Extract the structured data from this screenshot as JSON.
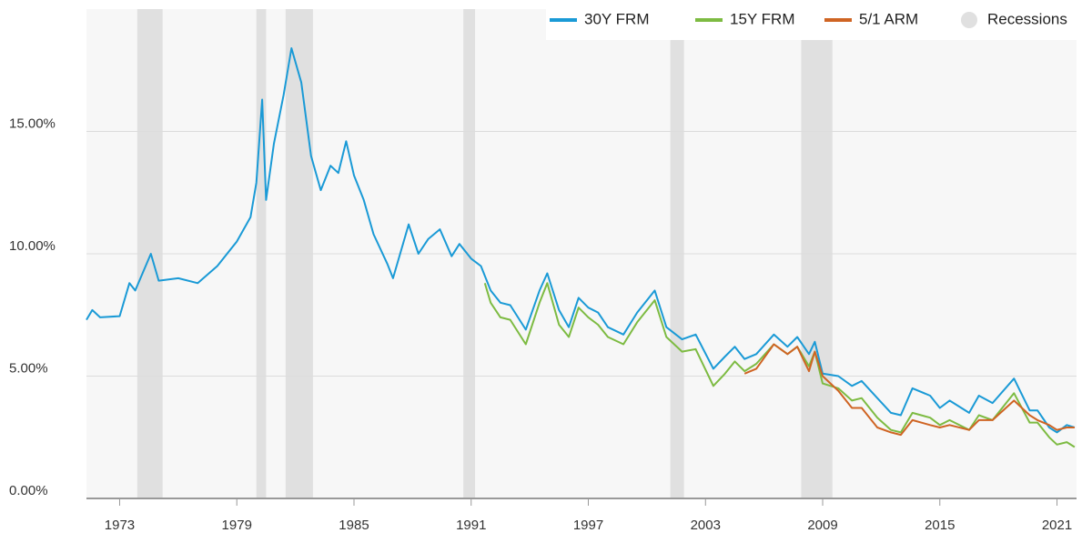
{
  "chart_data": {
    "type": "line",
    "xlim": [
      1971.3,
      2022.0
    ],
    "xticks": [
      1973,
      1979,
      1985,
      1991,
      1997,
      2003,
      2009,
      2015,
      2021
    ],
    "ylim": [
      0,
      20
    ],
    "yticks": [
      {
        "value": 0,
        "label": "0.00%"
      },
      {
        "value": 5,
        "label": "5.00%"
      },
      {
        "value": 10,
        "label": "10.00%"
      },
      {
        "value": 15,
        "label": "15.00%"
      }
    ],
    "grid": true,
    "legend": "top-right",
    "recession_label": "Recessions",
    "recession_color": "#e0e0e0",
    "recessions": [
      {
        "start": 1973.9,
        "end": 1975.2
      },
      {
        "start": 1980.0,
        "end": 1980.5
      },
      {
        "start": 1981.5,
        "end": 1982.9
      },
      {
        "start": 1990.6,
        "end": 1991.2
      },
      {
        "start": 2001.2,
        "end": 2001.9
      },
      {
        "start": 2007.9,
        "end": 2009.5
      }
    ],
    "series": [
      {
        "name": "30Y FRM",
        "color": "#1a9ad6",
        "x": [
          1971.3,
          1971.6,
          1972,
          1973,
          1973.5,
          1973.8,
          1974.6,
          1975,
          1976,
          1977,
          1978,
          1979,
          1979.7,
          1980.0,
          1980.3,
          1980.5,
          1980.9,
          1981.4,
          1981.8,
          1982.3,
          1982.8,
          1983.3,
          1983.8,
          1984.2,
          1984.6,
          1985.0,
          1985.5,
          1986.0,
          1986.7,
          1987.0,
          1987.8,
          1988.3,
          1988.8,
          1989.4,
          1990.0,
          1990.4,
          1991.0,
          1991.5,
          1992.0,
          1992.5,
          1993.0,
          1993.8,
          1994.5,
          1994.9,
          1995.5,
          1996.0,
          1996.5,
          1997.0,
          1997.5,
          1998.0,
          1998.8,
          1999.5,
          2000.4,
          2001.0,
          2001.8,
          2002.5,
          2003.4,
          2004.0,
          2004.5,
          2005.0,
          2005.6,
          2006.5,
          2007.2,
          2007.7,
          2008.3,
          2008.6,
          2009.0,
          2009.8,
          2010.5,
          2011.0,
          2011.8,
          2012.5,
          2013.0,
          2013.6,
          2014.5,
          2015.0,
          2015.5,
          2016.5,
          2017.0,
          2017.7,
          2018.8,
          2019.6,
          2020.0,
          2020.6,
          2021.0,
          2021.5,
          2021.9
        ],
        "values": [
          7.3,
          7.7,
          7.4,
          7.45,
          8.8,
          8.5,
          10.0,
          8.9,
          9.0,
          8.8,
          9.5,
          10.5,
          11.5,
          12.9,
          16.3,
          12.2,
          14.5,
          16.5,
          18.4,
          17.0,
          14.0,
          12.6,
          13.6,
          13.3,
          14.6,
          13.2,
          12.2,
          10.8,
          9.6,
          9.0,
          11.2,
          10.0,
          10.6,
          11.0,
          9.9,
          10.4,
          9.8,
          9.5,
          8.5,
          8.0,
          7.9,
          6.9,
          8.5,
          9.2,
          7.7,
          7.0,
          8.2,
          7.8,
          7.6,
          7.0,
          6.7,
          7.6,
          8.5,
          7.0,
          6.5,
          6.7,
          5.3,
          5.8,
          6.2,
          5.7,
          5.9,
          6.7,
          6.2,
          6.6,
          5.9,
          6.4,
          5.1,
          5.0,
          4.6,
          4.8,
          4.1,
          3.5,
          3.4,
          4.5,
          4.2,
          3.7,
          4.0,
          3.5,
          4.2,
          3.9,
          4.9,
          3.6,
          3.6,
          2.9,
          2.7,
          3.0,
          2.9
        ]
      },
      {
        "name": "15Y FRM",
        "color": "#7dbb42",
        "x": [
          1991.7,
          1992.0,
          1992.5,
          1993.0,
          1993.8,
          1994.5,
          1994.9,
          1995.5,
          1996.0,
          1996.5,
          1997.0,
          1997.5,
          1998.0,
          1998.8,
          1999.5,
          2000.4,
          2001.0,
          2001.8,
          2002.5,
          2003.4,
          2004.0,
          2004.5,
          2005.0,
          2005.6,
          2006.5,
          2007.2,
          2007.7,
          2008.3,
          2008.6,
          2009.0,
          2009.8,
          2010.5,
          2011.0,
          2011.8,
          2012.5,
          2013.0,
          2013.6,
          2014.5,
          2015.0,
          2015.5,
          2016.5,
          2017.0,
          2017.7,
          2018.8,
          2019.6,
          2020.0,
          2020.6,
          2021.0,
          2021.5,
          2021.9
        ],
        "values": [
          8.8,
          8.0,
          7.4,
          7.3,
          6.3,
          8.0,
          8.8,
          7.1,
          6.6,
          7.8,
          7.4,
          7.1,
          6.6,
          6.3,
          7.2,
          8.1,
          6.6,
          6.0,
          6.1,
          4.6,
          5.1,
          5.6,
          5.2,
          5.5,
          6.3,
          5.9,
          6.2,
          5.4,
          6.0,
          4.7,
          4.5,
          4.0,
          4.1,
          3.3,
          2.8,
          2.7,
          3.5,
          3.3,
          3.0,
          3.2,
          2.8,
          3.4,
          3.2,
          4.3,
          3.1,
          3.1,
          2.5,
          2.2,
          2.3,
          2.1
        ]
      },
      {
        "name": "5/1 ARM",
        "color": "#cf6423",
        "x": [
          2005.0,
          2005.6,
          2006.5,
          2007.2,
          2007.7,
          2008.3,
          2008.6,
          2009.0,
          2009.8,
          2010.5,
          2011.0,
          2011.8,
          2012.5,
          2013.0,
          2013.6,
          2014.5,
          2015.0,
          2015.5,
          2016.5,
          2017.0,
          2017.7,
          2018.8,
          2019.6,
          2020.0,
          2020.6,
          2021.0,
          2021.5,
          2021.9
        ],
        "values": [
          5.1,
          5.3,
          6.3,
          5.9,
          6.2,
          5.2,
          6.0,
          5.0,
          4.4,
          3.7,
          3.7,
          2.9,
          2.7,
          2.6,
          3.2,
          3.0,
          2.9,
          3.0,
          2.8,
          3.2,
          3.2,
          4.0,
          3.4,
          3.2,
          3.0,
          2.8,
          2.9,
          2.9
        ]
      }
    ]
  }
}
